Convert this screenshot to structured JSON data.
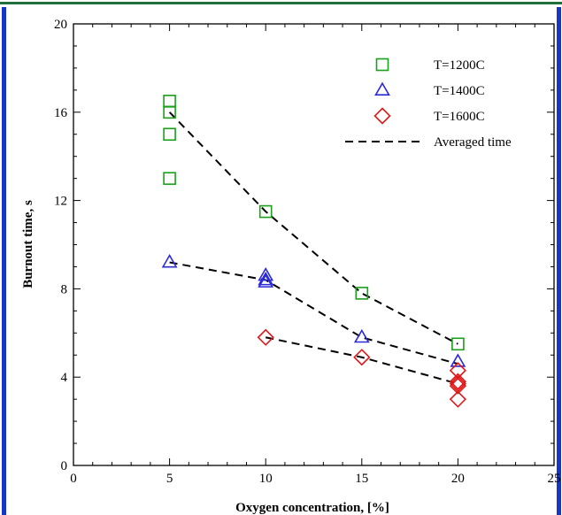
{
  "chart_data": {
    "type": "scatter",
    "xlabel": "Oxygen concentration, [%]",
    "ylabel": "Burnout time, s",
    "xlim": [
      0,
      25
    ],
    "ylim": [
      0,
      20
    ],
    "x_ticks": [
      0,
      5,
      10,
      15,
      20,
      25
    ],
    "y_ticks": [
      0,
      4,
      8,
      12,
      16,
      20
    ],
    "grid": false,
    "legend_position": "top-right",
    "series": [
      {
        "name": "T=1200C",
        "marker": "square",
        "color": "#1aa01a",
        "points": [
          [
            5,
            16.5
          ],
          [
            5,
            16.0
          ],
          [
            5,
            15.0
          ],
          [
            5,
            13.0
          ],
          [
            10,
            11.5
          ],
          [
            15,
            7.8
          ],
          [
            20,
            5.5
          ]
        ]
      },
      {
        "name": "T=1400C",
        "marker": "triangle",
        "color": "#2a2ad8",
        "points": [
          [
            5,
            9.2
          ],
          [
            10,
            8.6
          ],
          [
            10,
            8.4
          ],
          [
            10,
            8.3
          ],
          [
            15,
            5.8
          ],
          [
            20,
            4.7
          ]
        ]
      },
      {
        "name": "T=1600C",
        "marker": "diamond",
        "color": "#e01818",
        "points": [
          [
            10,
            5.8
          ],
          [
            15,
            4.9
          ],
          [
            20,
            4.3
          ],
          [
            20,
            3.8
          ],
          [
            20,
            3.7
          ],
          [
            20,
            3.6
          ],
          [
            20,
            3.0
          ]
        ]
      },
      {
        "name": "Averaged time",
        "style": "dashed-line",
        "color": "#000000",
        "lines": [
          [
            [
              5,
              16.0
            ],
            [
              10,
              11.5
            ],
            [
              15,
              7.8
            ],
            [
              20,
              5.5
            ]
          ],
          [
            [
              5,
              9.2
            ],
            [
              10,
              8.4
            ],
            [
              15,
              5.8
            ],
            [
              20,
              4.6
            ]
          ],
          [
            [
              10,
              5.8
            ],
            [
              15,
              4.9
            ],
            [
              20,
              3.7
            ]
          ]
        ]
      }
    ]
  }
}
